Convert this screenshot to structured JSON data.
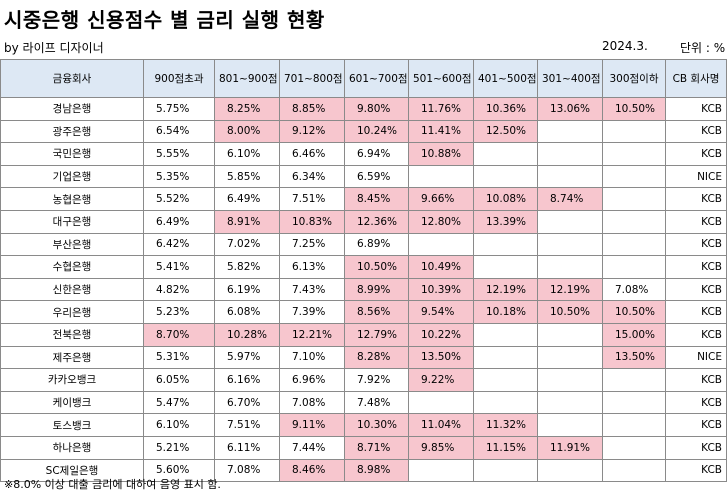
{
  "title": "시중은행 신용점수 별 금리 실행 현황",
  "byline": "by 라이프 디자이너",
  "date": "2024.3.",
  "unit": "단위 : %",
  "columns": [
    "금융회사",
    "900점초과",
    "801~900점",
    "701~800점",
    "601~700점",
    "501~600점",
    "401~500점",
    "301~400점",
    "300점이하",
    "CB 회사명"
  ],
  "highlight_color": "#f7c6ce",
  "header_color": "#dde8f4",
  "rows": [
    {
      "bank": "경남은행",
      "values": [
        "5.75%",
        "8.25%",
        "8.85%",
        "9.80%",
        "11.76%",
        "10.36%",
        "13.06%",
        "10.50%"
      ],
      "cb": "KCB"
    },
    {
      "bank": "광주은행",
      "values": [
        "6.54%",
        "8.00%",
        "9.12%",
        "10.24%",
        "11.41%",
        "12.50%",
        "",
        ""
      ],
      "cb": "KCB"
    },
    {
      "bank": "국민은행",
      "values": [
        "5.55%",
        "6.10%",
        "6.46%",
        "6.94%",
        "10.88%",
        "",
        "",
        ""
      ],
      "cb": "KCB"
    },
    {
      "bank": "기업은행",
      "values": [
        "5.35%",
        "5.85%",
        "6.34%",
        "6.59%",
        "",
        "",
        "",
        ""
      ],
      "cb": "NICE"
    },
    {
      "bank": "농협은행",
      "values": [
        "5.52%",
        "6.49%",
        "7.51%",
        "8.45%",
        "9.66%",
        "10.08%",
        "8.74%",
        ""
      ],
      "cb": "KCB"
    },
    {
      "bank": "대구은행",
      "values": [
        "6.49%",
        "8.91%",
        "10.83%",
        "12.36%",
        "12.80%",
        "13.39%",
        "",
        ""
      ],
      "cb": "KCB"
    },
    {
      "bank": "부산은행",
      "values": [
        "6.42%",
        "7.02%",
        "7.25%",
        "6.89%",
        "",
        "",
        "",
        ""
      ],
      "cb": "KCB"
    },
    {
      "bank": "수협은행",
      "values": [
        "5.41%",
        "5.82%",
        "6.13%",
        "10.50%",
        "10.49%",
        "",
        "",
        ""
      ],
      "cb": "KCB"
    },
    {
      "bank": "신한은행",
      "values": [
        "4.82%",
        "6.19%",
        "7.43%",
        "8.99%",
        "10.39%",
        "12.19%",
        "12.19%",
        "7.08%"
      ],
      "cb": "KCB"
    },
    {
      "bank": "우리은행",
      "values": [
        "5.23%",
        "6.08%",
        "7.39%",
        "8.56%",
        "9.54%",
        "10.18%",
        "10.50%",
        "10.50%"
      ],
      "cb": "KCB"
    },
    {
      "bank": "전북은행",
      "values": [
        "8.70%",
        "10.28%",
        "12.21%",
        "12.79%",
        "10.22%",
        "",
        "",
        "15.00%"
      ],
      "cb": "KCB"
    },
    {
      "bank": "제주은행",
      "values": [
        "5.31%",
        "5.97%",
        "7.10%",
        "8.28%",
        "13.50%",
        "",
        "",
        "13.50%"
      ],
      "cb": "NICE"
    },
    {
      "bank": "카카오뱅크",
      "values": [
        "6.05%",
        "6.16%",
        "6.96%",
        "7.92%",
        "9.22%",
        "",
        "",
        ""
      ],
      "cb": "KCB"
    },
    {
      "bank": "케이뱅크",
      "values": [
        "5.47%",
        "6.70%",
        "7.08%",
        "7.48%",
        "",
        "",
        "",
        ""
      ],
      "cb": "KCB"
    },
    {
      "bank": "토스뱅크",
      "values": [
        "6.10%",
        "7.51%",
        "9.11%",
        "10.30%",
        "11.04%",
        "11.32%",
        "",
        ""
      ],
      "cb": "KCB"
    },
    {
      "bank": "하나은행",
      "values": [
        "5.21%",
        "6.11%",
        "7.44%",
        "8.71%",
        "9.85%",
        "11.15%",
        "11.91%",
        ""
      ],
      "cb": "KCB"
    },
    {
      "bank": "SC제일은행",
      "values": [
        "5.60%",
        "7.08%",
        "8.46%",
        "8.98%",
        "",
        "",
        "",
        ""
      ],
      "cb": "KCB"
    }
  ],
  "footnote": "※8.0% 이상 대출 금리에 대하여 음영 표시 함."
}
